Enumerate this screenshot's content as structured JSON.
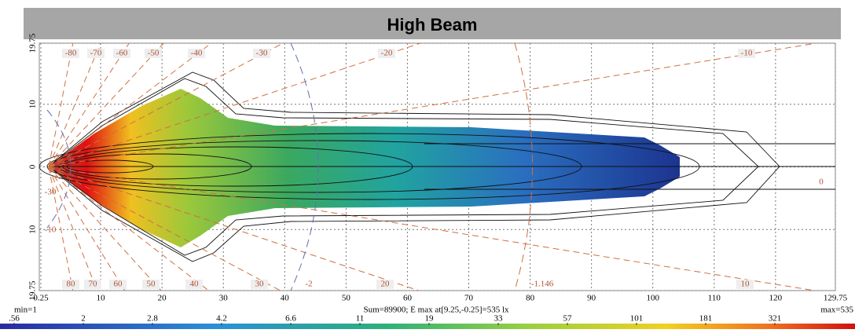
{
  "chart_data": {
    "type": "heatmap",
    "title": "High Beam",
    "xlim": [
      0,
      129.75
    ],
    "xticks": [
      0.25,
      10,
      20,
      30,
      40,
      50,
      60,
      70,
      80,
      90,
      100,
      110,
      120,
      129.75
    ],
    "ylim": [
      -19.75,
      19.75
    ],
    "yticks": [
      19.75,
      10,
      0,
      {
        "value": -10,
        "label": "10"
      },
      {
        "value": -19.75,
        "label": "19.75"
      }
    ],
    "grid": true,
    "angle_labels_top": [
      "-80",
      "-70",
      "-60",
      "-50",
      "-40",
      "-30",
      "-20",
      "-10"
    ],
    "angle_labels_bottom": [
      "80",
      "70",
      "60",
      "50",
      "40",
      "30",
      "20",
      "10"
    ],
    "annotations": [
      "-2",
      "-1.146",
      "0",
      "-30",
      "-10"
    ],
    "min_label": "min=1",
    "summary": "Sum=89900; E max at[9.25,-0.25]=535 lx",
    "max_label": "max=535",
    "colorbar_ticks": [
      {
        "value": 0.56,
        "label": ".56"
      },
      2,
      2.8,
      4.2,
      6.6,
      11,
      19,
      33,
      57,
      101,
      181,
      321
    ]
  }
}
